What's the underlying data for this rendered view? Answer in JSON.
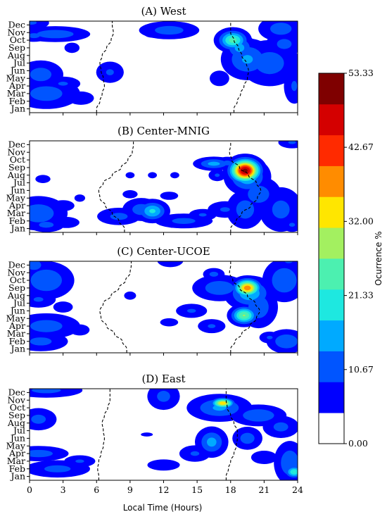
{
  "chart_data": {
    "type": "heatmap",
    "xlabel": "Local Time (Hours)",
    "x_ticks": [
      "0",
      "3",
      "6",
      "9",
      "12",
      "15",
      "18",
      "21",
      "24"
    ],
    "xlim": [
      0,
      24
    ],
    "y_ticks": [
      "Jan",
      "Feb",
      "Mar",
      "Apr",
      "May",
      "Jun",
      "Jul",
      "Aug",
      "Sep",
      "Oct",
      "Nov",
      "Dec"
    ],
    "colorbar": {
      "label": "Ocurrence %",
      "min": 0,
      "max": 53.33,
      "tick_labels": [
        "0.00",
        "10.67",
        "21.33",
        "32.00",
        "42.67",
        "53.33"
      ],
      "tick_values": [
        0,
        10.67,
        21.33,
        32.0,
        42.67,
        53.33
      ],
      "colors": [
        "#ffffff",
        "#0000ff",
        "#0055ff",
        "#00aaff",
        "#1ee8e0",
        "#4cf0b0",
        "#a3f060",
        "#ffe600",
        "#ff8c00",
        "#ff2a00",
        "#d40000",
        "#7f0000"
      ]
    },
    "panels": [
      {
        "title": "(A) West",
        "blobs": [
          {
            "x": 0.4,
            "y": 9.6,
            "sx": 0.8,
            "sy": 0.5,
            "v": 9
          },
          {
            "x": 2.3,
            "y": 9.8,
            "sx": 1.8,
            "sy": 0.6,
            "v": 11
          },
          {
            "x": 0.2,
            "y": 11.3,
            "sx": 1.0,
            "sy": 0.6,
            "v": 8
          },
          {
            "x": 1.0,
            "y": 4.5,
            "sx": 1.2,
            "sy": 1.1,
            "v": 10
          },
          {
            "x": 1.5,
            "y": 2.0,
            "sx": 1.8,
            "sy": 1.2,
            "v": 10
          },
          {
            "x": 3.0,
            "y": 3.3,
            "sx": 1.0,
            "sy": 0.6,
            "v": 8
          },
          {
            "x": 4.6,
            "y": 1.4,
            "sx": 0.8,
            "sy": 0.6,
            "v": 7
          },
          {
            "x": 7.2,
            "y": 4.8,
            "sx": 0.8,
            "sy": 0.9,
            "v": 8
          },
          {
            "x": 3.8,
            "y": 8.0,
            "sx": 0.5,
            "sy": 0.5,
            "v": 6
          },
          {
            "x": 12.5,
            "y": 10.3,
            "sx": 1.6,
            "sy": 0.7,
            "v": 10
          },
          {
            "x": 11.0,
            "y": 10.0,
            "sx": 0.6,
            "sy": 0.5,
            "v": 6
          },
          {
            "x": 22.5,
            "y": 10.5,
            "sx": 1.2,
            "sy": 1.0,
            "v": 10
          },
          {
            "x": 18.2,
            "y": 9.0,
            "sx": 0.8,
            "sy": 0.8,
            "v": 24
          },
          {
            "x": 18.8,
            "y": 8.0,
            "sx": 0.8,
            "sy": 1.0,
            "v": 14
          },
          {
            "x": 19.5,
            "y": 6.5,
            "sx": 1.3,
            "sy": 1.5,
            "v": 13
          },
          {
            "x": 21.5,
            "y": 6.0,
            "sx": 1.6,
            "sy": 1.8,
            "v": 10
          },
          {
            "x": 22.8,
            "y": 8.5,
            "sx": 1.0,
            "sy": 1.0,
            "v": 9
          },
          {
            "x": 23.7,
            "y": 3.0,
            "sx": 0.6,
            "sy": 1.5,
            "v": 8
          },
          {
            "x": 17.0,
            "y": 4.0,
            "sx": 0.6,
            "sy": 0.7,
            "v": 7
          }
        ],
        "terminator_sunrise": [
          6.0,
          6.3,
          6.5,
          6.7,
          6.6,
          6.4,
          6.3,
          6.5,
          6.9,
          7.3,
          7.5,
          7.4
        ],
        "terminator_sunset": [
          18.3,
          18.6,
          18.9,
          19.2,
          19.5,
          19.6,
          19.4,
          19.0,
          18.7,
          18.3,
          18.0,
          18.0
        ]
      },
      {
        "title": "(B) Center-MNIG",
        "blobs": [
          {
            "x": 0.8,
            "y": 2.0,
            "sx": 1.5,
            "sy": 1.3,
            "v": 11
          },
          {
            "x": 1.5,
            "y": 0.5,
            "sx": 1.0,
            "sy": 0.6,
            "v": 9
          },
          {
            "x": 3.3,
            "y": 0.8,
            "sx": 0.8,
            "sy": 0.5,
            "v": 7
          },
          {
            "x": 3.0,
            "y": 3.0,
            "sx": 0.7,
            "sy": 0.5,
            "v": 7
          },
          {
            "x": 1.2,
            "y": 6.5,
            "sx": 0.5,
            "sy": 0.4,
            "v": 6
          },
          {
            "x": 4.5,
            "y": 4.0,
            "sx": 0.4,
            "sy": 0.4,
            "v": 5
          },
          {
            "x": 8.0,
            "y": 1.6,
            "sx": 1.2,
            "sy": 0.7,
            "v": 9
          },
          {
            "x": 10.0,
            "y": 2.5,
            "sx": 1.0,
            "sy": 0.9,
            "v": 10
          },
          {
            "x": 11.0,
            "y": 2.3,
            "sx": 0.8,
            "sy": 0.8,
            "v": 18
          },
          {
            "x": 13.8,
            "y": 1.0,
            "sx": 1.6,
            "sy": 0.6,
            "v": 9
          },
          {
            "x": 15.5,
            "y": 1.8,
            "sx": 0.8,
            "sy": 0.5,
            "v": 8
          },
          {
            "x": 9.0,
            "y": 4.5,
            "sx": 0.5,
            "sy": 0.4,
            "v": 6
          },
          {
            "x": 12.5,
            "y": 4.3,
            "sx": 0.6,
            "sy": 0.4,
            "v": 6
          },
          {
            "x": 9.0,
            "y": 7.0,
            "sx": 0.3,
            "sy": 0.3,
            "v": 6
          },
          {
            "x": 11.0,
            "y": 7.0,
            "sx": 0.3,
            "sy": 0.3,
            "v": 6
          },
          {
            "x": 13.0,
            "y": 7.0,
            "sx": 0.3,
            "sy": 0.3,
            "v": 6
          },
          {
            "x": 16.5,
            "y": 8.5,
            "sx": 1.0,
            "sy": 0.5,
            "v": 14
          },
          {
            "x": 17.7,
            "y": 8.6,
            "sx": 0.6,
            "sy": 0.5,
            "v": 9
          },
          {
            "x": 16.8,
            "y": 7.0,
            "sx": 0.5,
            "sy": 0.5,
            "v": 8
          },
          {
            "x": 19.3,
            "y": 7.6,
            "sx": 0.8,
            "sy": 0.9,
            "v": 53
          },
          {
            "x": 19.5,
            "y": 6.8,
            "sx": 1.1,
            "sy": 1.3,
            "v": 16
          },
          {
            "x": 20.5,
            "y": 4.5,
            "sx": 1.2,
            "sy": 1.4,
            "v": 10
          },
          {
            "x": 19.3,
            "y": 2.5,
            "sx": 1.0,
            "sy": 1.5,
            "v": 10
          },
          {
            "x": 22.5,
            "y": 2.5,
            "sx": 1.2,
            "sy": 1.8,
            "v": 9
          },
          {
            "x": 23.5,
            "y": 11.3,
            "sx": 0.8,
            "sy": 0.5,
            "v": 8
          },
          {
            "x": 17.5,
            "y": 2.5,
            "sx": 1.0,
            "sy": 0.7,
            "v": 8
          },
          {
            "x": 23.5,
            "y": 0.5,
            "sx": 0.6,
            "sy": 0.6,
            "v": 8
          }
        ],
        "terminator_sunrise": [
          8.5,
          8.0,
          7.4,
          6.8,
          6.3,
          6.2,
          6.6,
          7.4,
          8.2,
          8.8,
          9.2,
          9.3
        ],
        "terminator_sunset": [
          18.0,
          18.5,
          19.0,
          19.8,
          20.4,
          20.7,
          20.3,
          19.6,
          18.8,
          18.1,
          17.9,
          18.0
        ]
      },
      {
        "title": "(C) Center-UCOE",
        "blobs": [
          {
            "x": 0.4,
            "y": 11.0,
            "sx": 0.8,
            "sy": 0.8,
            "v": 10
          },
          {
            "x": 1.5,
            "y": 9.0,
            "sx": 1.4,
            "sy": 1.4,
            "v": 12
          },
          {
            "x": 0.8,
            "y": 6.5,
            "sx": 1.0,
            "sy": 0.7,
            "v": 8
          },
          {
            "x": 1.5,
            "y": 3.0,
            "sx": 1.8,
            "sy": 1.0,
            "v": 10
          },
          {
            "x": 1.0,
            "y": 1.0,
            "sx": 1.5,
            "sy": 0.8,
            "v": 9
          },
          {
            "x": 3.0,
            "y": 5.5,
            "sx": 0.6,
            "sy": 0.5,
            "v": 7
          },
          {
            "x": 4.5,
            "y": 2.5,
            "sx": 0.6,
            "sy": 0.5,
            "v": 7
          },
          {
            "x": 9.0,
            "y": 7.0,
            "sx": 0.4,
            "sy": 0.4,
            "v": 6
          },
          {
            "x": 12.6,
            "y": 11.6,
            "sx": 0.8,
            "sy": 0.6,
            "v": 7
          },
          {
            "x": 14.5,
            "y": 5.0,
            "sx": 0.9,
            "sy": 0.6,
            "v": 8
          },
          {
            "x": 12.5,
            "y": 3.5,
            "sx": 0.6,
            "sy": 0.4,
            "v": 6
          },
          {
            "x": 16.3,
            "y": 3.0,
            "sx": 0.8,
            "sy": 0.6,
            "v": 8
          },
          {
            "x": 17.0,
            "y": 8.0,
            "sx": 1.4,
            "sy": 1.0,
            "v": 11
          },
          {
            "x": 16.5,
            "y": 9.8,
            "sx": 0.6,
            "sy": 0.5,
            "v": 9
          },
          {
            "x": 19.5,
            "y": 8.0,
            "sx": 0.7,
            "sy": 0.7,
            "v": 40
          },
          {
            "x": 19.7,
            "y": 7.3,
            "sx": 1.2,
            "sy": 1.2,
            "v": 16
          },
          {
            "x": 19.2,
            "y": 4.4,
            "sx": 0.7,
            "sy": 0.7,
            "v": 27
          },
          {
            "x": 20.5,
            "y": 5.5,
            "sx": 1.0,
            "sy": 1.6,
            "v": 11
          },
          {
            "x": 22.8,
            "y": 9.0,
            "sx": 1.1,
            "sy": 1.6,
            "v": 12
          },
          {
            "x": 23.2,
            "y": 11.5,
            "sx": 0.8,
            "sy": 0.6,
            "v": 8
          },
          {
            "x": 23.0,
            "y": 1.0,
            "sx": 1.0,
            "sy": 0.9,
            "v": 12
          },
          {
            "x": 21.5,
            "y": 1.5,
            "sx": 0.6,
            "sy": 0.5,
            "v": 8
          }
        ],
        "terminator_sunrise": [
          8.7,
          8.3,
          7.6,
          6.9,
          6.4,
          6.3,
          6.6,
          7.3,
          8.0,
          8.6,
          9.0,
          9.1
        ],
        "terminator_sunset": [
          18.0,
          18.4,
          19.0,
          19.7,
          20.3,
          20.6,
          20.2,
          19.5,
          18.8,
          18.2,
          17.9,
          18.0
        ]
      },
      {
        "title": "(D) East",
        "blobs": [
          {
            "x": 1.5,
            "y": 11.3,
            "sx": 2.0,
            "sy": 0.6,
            "v": 9
          },
          {
            "x": 0.8,
            "y": 7.5,
            "sx": 1.0,
            "sy": 0.9,
            "v": 9
          },
          {
            "x": 0.8,
            "y": 3.0,
            "sx": 1.6,
            "sy": 0.6,
            "v": 10
          },
          {
            "x": 2.5,
            "y": 1.0,
            "sx": 1.8,
            "sy": 0.7,
            "v": 9
          },
          {
            "x": 4.5,
            "y": 2.0,
            "sx": 0.9,
            "sy": 0.5,
            "v": 8
          },
          {
            "x": 12.0,
            "y": 10.5,
            "sx": 0.9,
            "sy": 1.1,
            "v": 9
          },
          {
            "x": 12.0,
            "y": 1.5,
            "sx": 1.0,
            "sy": 0.5,
            "v": 7
          },
          {
            "x": 10.5,
            "y": 5.5,
            "sx": 0.4,
            "sy": 0.2,
            "v": 6
          },
          {
            "x": 17.3,
            "y": 9.6,
            "sx": 0.6,
            "sy": 0.4,
            "v": 36
          },
          {
            "x": 17.0,
            "y": 9.0,
            "sx": 1.6,
            "sy": 1.0,
            "v": 13
          },
          {
            "x": 16.3,
            "y": 4.5,
            "sx": 0.8,
            "sy": 1.1,
            "v": 14
          },
          {
            "x": 14.8,
            "y": 3.0,
            "sx": 0.9,
            "sy": 0.7,
            "v": 8
          },
          {
            "x": 20.5,
            "y": 8.0,
            "sx": 1.4,
            "sy": 0.8,
            "v": 12
          },
          {
            "x": 19.5,
            "y": 5.0,
            "sx": 0.8,
            "sy": 0.9,
            "v": 10
          },
          {
            "x": 22.5,
            "y": 6.5,
            "sx": 1.0,
            "sy": 0.9,
            "v": 9
          },
          {
            "x": 23.3,
            "y": 1.8,
            "sx": 0.8,
            "sy": 1.6,
            "v": 12
          },
          {
            "x": 23.7,
            "y": 0.6,
            "sx": 0.5,
            "sy": 0.5,
            "v": 22
          },
          {
            "x": 21.0,
            "y": 2.5,
            "sx": 0.8,
            "sy": 0.6,
            "v": 7
          }
        ],
        "terminator_sunrise": [
          6.2,
          6.1,
          6.2,
          6.4,
          6.6,
          6.7,
          6.6,
          6.5,
          6.7,
          7.0,
          7.2,
          7.2
        ],
        "terminator_sunset": [
          17.6,
          17.8,
          18.0,
          18.3,
          18.5,
          18.6,
          18.6,
          18.3,
          18.0,
          17.7,
          17.6,
          17.6
        ]
      }
    ]
  }
}
